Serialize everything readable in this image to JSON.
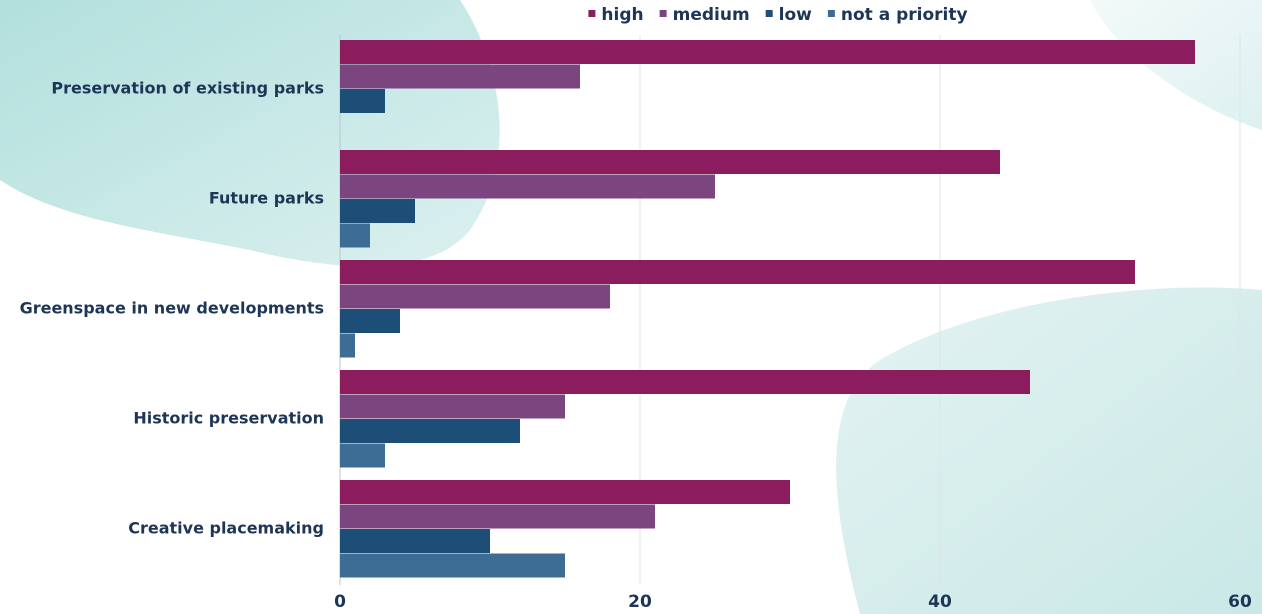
{
  "chart_data": {
    "type": "bar",
    "orientation": "horizontal",
    "categories": [
      "Preservation of existing parks",
      "Future parks",
      "Greenspace in new developments",
      "Historic preservation",
      "Creative placemaking"
    ],
    "series": [
      {
        "name": "high",
        "color": "#8b1d5e",
        "values": [
          57,
          44,
          53,
          46,
          30
        ]
      },
      {
        "name": "medium",
        "color": "#7b4580",
        "values": [
          16,
          25,
          18,
          15,
          21
        ]
      },
      {
        "name": "low",
        "color": "#1c4e78",
        "values": [
          3,
          5,
          4,
          12,
          10
        ]
      },
      {
        "name": "not a priority",
        "color": "#3d6d94",
        "values": [
          0,
          2,
          1,
          3,
          15
        ]
      }
    ],
    "xlim": [
      0,
      60
    ],
    "xticks": [
      0,
      20,
      40,
      60
    ],
    "grid": true,
    "legend_position": "top"
  }
}
